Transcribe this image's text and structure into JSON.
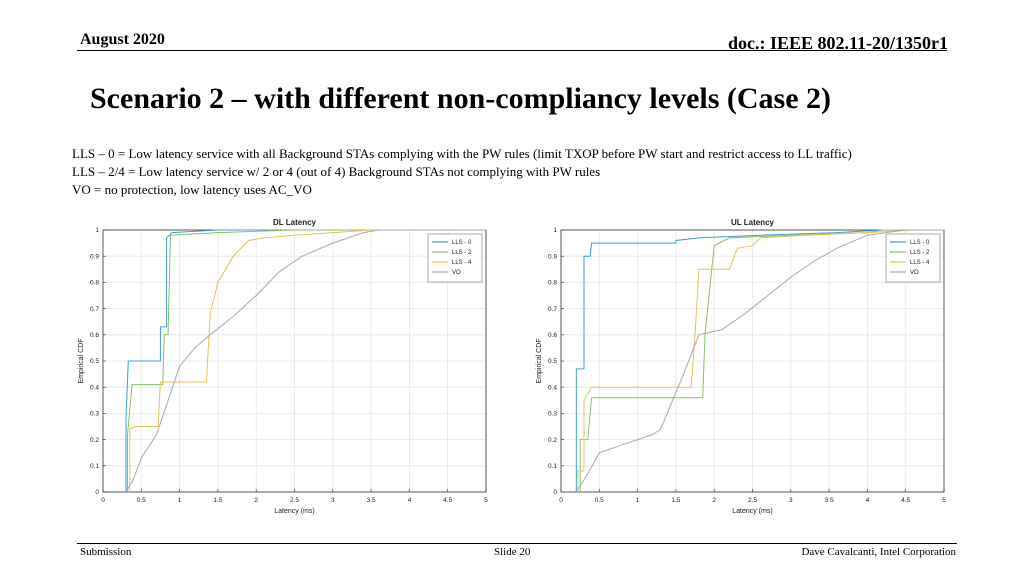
{
  "header": {
    "date": "August 2020",
    "doc": "doc.: IEEE 802.11-20/1350r1"
  },
  "title": "Scenario 2 – with different non-compliancy levels (Case 2)",
  "description": [
    "LLS – 0 = Low latency service with all Background STAs complying with  the PW rules (limit TXOP before PW start and restrict access to LL traffic)",
    "LLS – 2/4 = Low latency service w/ 2 or 4 (out of 4) Background STAs not complying with PW rules",
    "VO  = no protection, low latency uses AC_VO"
  ],
  "footer": {
    "left": "Submission",
    "center": "Slide 20",
    "right": "Dave Cavalcanti, Intel Corporation"
  },
  "colors": {
    "lls0": "#3aa0c8",
    "lls2": "#8fbf6a",
    "lls4": "#e6c35a",
    "vo": "#a9a9b8"
  },
  "chart_data": [
    {
      "type": "line",
      "title": "DL Latency",
      "xlabel": "Latency (ms)",
      "ylabel": "Empirical CDF",
      "xlim": [
        0,
        5
      ],
      "ylim": [
        0,
        1
      ],
      "xticks": [
        "0",
        "0.5",
        "1",
        "1.5",
        "2",
        "2.5",
        "3",
        "3.5",
        "4",
        "4.5",
        "5"
      ],
      "yticks": [
        "0",
        "0.1",
        "0.2",
        "0.3",
        "0.4",
        "0.5",
        "0.6",
        "0.7",
        "0.8",
        "0.9",
        "1"
      ],
      "grid": true,
      "legend": "top-right",
      "series": [
        {
          "name": "LLS - 0",
          "color": "#3aa0c8",
          "points": [
            [
              0.3,
              0
            ],
            [
              0.3,
              0.28
            ],
            [
              0.33,
              0.5
            ],
            [
              0.75,
              0.5
            ],
            [
              0.75,
              0.63
            ],
            [
              0.83,
              0.63
            ],
            [
              0.83,
              0.97
            ],
            [
              0.9,
              0.99
            ],
            [
              1.5,
              1.0
            ],
            [
              5,
              1.0
            ]
          ]
        },
        {
          "name": "LLS - 2",
          "color": "#8fbf6a",
          "points": [
            [
              0.32,
              0
            ],
            [
              0.32,
              0.22
            ],
            [
              0.38,
              0.41
            ],
            [
              0.78,
              0.41
            ],
            [
              0.8,
              0.6
            ],
            [
              0.85,
              0.6
            ],
            [
              0.88,
              0.98
            ],
            [
              1.5,
              0.99
            ],
            [
              2.5,
              1.0
            ],
            [
              5,
              1.0
            ]
          ]
        },
        {
          "name": "LLS - 4",
          "color": "#e6c35a",
          "points": [
            [
              0.35,
              0
            ],
            [
              0.35,
              0.24
            ],
            [
              0.42,
              0.25
            ],
            [
              0.72,
              0.25
            ],
            [
              0.75,
              0.42
            ],
            [
              1.35,
              0.42
            ],
            [
              1.4,
              0.68
            ],
            [
              1.5,
              0.8
            ],
            [
              1.7,
              0.9
            ],
            [
              1.9,
              0.96
            ],
            [
              2.1,
              0.97
            ],
            [
              2.5,
              0.98
            ],
            [
              3.0,
              0.99
            ],
            [
              3.5,
              1.0
            ],
            [
              5,
              1.0
            ]
          ]
        },
        {
          "name": "VO",
          "color": "#a9a9b8",
          "points": [
            [
              0.3,
              0
            ],
            [
              0.4,
              0.05
            ],
            [
              0.5,
              0.13
            ],
            [
              0.7,
              0.22
            ],
            [
              0.85,
              0.35
            ],
            [
              1.0,
              0.48
            ],
            [
              1.2,
              0.55
            ],
            [
              1.4,
              0.6
            ],
            [
              1.7,
              0.67
            ],
            [
              2.0,
              0.75
            ],
            [
              2.3,
              0.84
            ],
            [
              2.6,
              0.9
            ],
            [
              3.0,
              0.95
            ],
            [
              3.4,
              0.99
            ],
            [
              3.6,
              1.0
            ],
            [
              5,
              1.0
            ]
          ]
        }
      ]
    },
    {
      "type": "line",
      "title": "UL Latency",
      "xlabel": "Latency (ms)",
      "ylabel": "Empirical CDF",
      "xlim": [
        0,
        5
      ],
      "ylim": [
        0,
        1
      ],
      "xticks": [
        "0",
        "0.5",
        "1",
        "1.5",
        "2",
        "2.5",
        "3",
        "3.5",
        "4",
        "4.5",
        "5"
      ],
      "yticks": [
        "0",
        "0.1",
        "0.2",
        "0.3",
        "0.4",
        "0.5",
        "0.6",
        "0.7",
        "0.8",
        "0.9",
        "1"
      ],
      "grid": true,
      "legend": "top-right",
      "series": [
        {
          "name": "LLS - 0",
          "color": "#3aa0c8",
          "points": [
            [
              0.2,
              0
            ],
            [
              0.2,
              0.47
            ],
            [
              0.3,
              0.47
            ],
            [
              0.3,
              0.9
            ],
            [
              0.38,
              0.9
            ],
            [
              0.4,
              0.95
            ],
            [
              1.5,
              0.95
            ],
            [
              1.5,
              0.96
            ],
            [
              1.8,
              0.97
            ],
            [
              2.6,
              0.98
            ],
            [
              3.6,
              0.99
            ],
            [
              4.2,
              1.0
            ],
            [
              5,
              1.0
            ]
          ]
        },
        {
          "name": "LLS - 2",
          "color": "#8fbf6a",
          "points": [
            [
              0.25,
              0
            ],
            [
              0.25,
              0.2
            ],
            [
              0.35,
              0.2
            ],
            [
              0.4,
              0.36
            ],
            [
              1.85,
              0.36
            ],
            [
              1.88,
              0.6
            ],
            [
              2.0,
              0.94
            ],
            [
              2.2,
              0.97
            ],
            [
              3.0,
              0.98
            ],
            [
              4.0,
              0.99
            ],
            [
              4.2,
              1.0
            ],
            [
              5,
              1.0
            ]
          ]
        },
        {
          "name": "LLS - 4",
          "color": "#e6c35a",
          "points": [
            [
              0.22,
              0
            ],
            [
              0.22,
              0.08
            ],
            [
              0.3,
              0.08
            ],
            [
              0.3,
              0.35
            ],
            [
              0.4,
              0.4
            ],
            [
              1.7,
              0.4
            ],
            [
              1.75,
              0.6
            ],
            [
              1.8,
              0.85
            ],
            [
              2.2,
              0.85
            ],
            [
              2.3,
              0.93
            ],
            [
              2.5,
              0.94
            ],
            [
              2.6,
              0.97
            ],
            [
              3.2,
              0.98
            ],
            [
              4.0,
              0.99
            ],
            [
              4.6,
              1.0
            ],
            [
              5,
              1.0
            ]
          ]
        },
        {
          "name": "VO",
          "color": "#a9a9b8",
          "points": [
            [
              0.2,
              0
            ],
            [
              0.35,
              0.07
            ],
            [
              0.5,
              0.15
            ],
            [
              0.8,
              0.18
            ],
            [
              1.0,
              0.2
            ],
            [
              1.2,
              0.22
            ],
            [
              1.3,
              0.24
            ],
            [
              1.6,
              0.45
            ],
            [
              1.8,
              0.6
            ],
            [
              2.1,
              0.62
            ],
            [
              2.4,
              0.68
            ],
            [
              2.7,
              0.75
            ],
            [
              3.0,
              0.82
            ],
            [
              3.3,
              0.88
            ],
            [
              3.6,
              0.93
            ],
            [
              4.0,
              0.98
            ],
            [
              4.5,
              1.0
            ],
            [
              5,
              1.0
            ]
          ]
        }
      ]
    }
  ]
}
